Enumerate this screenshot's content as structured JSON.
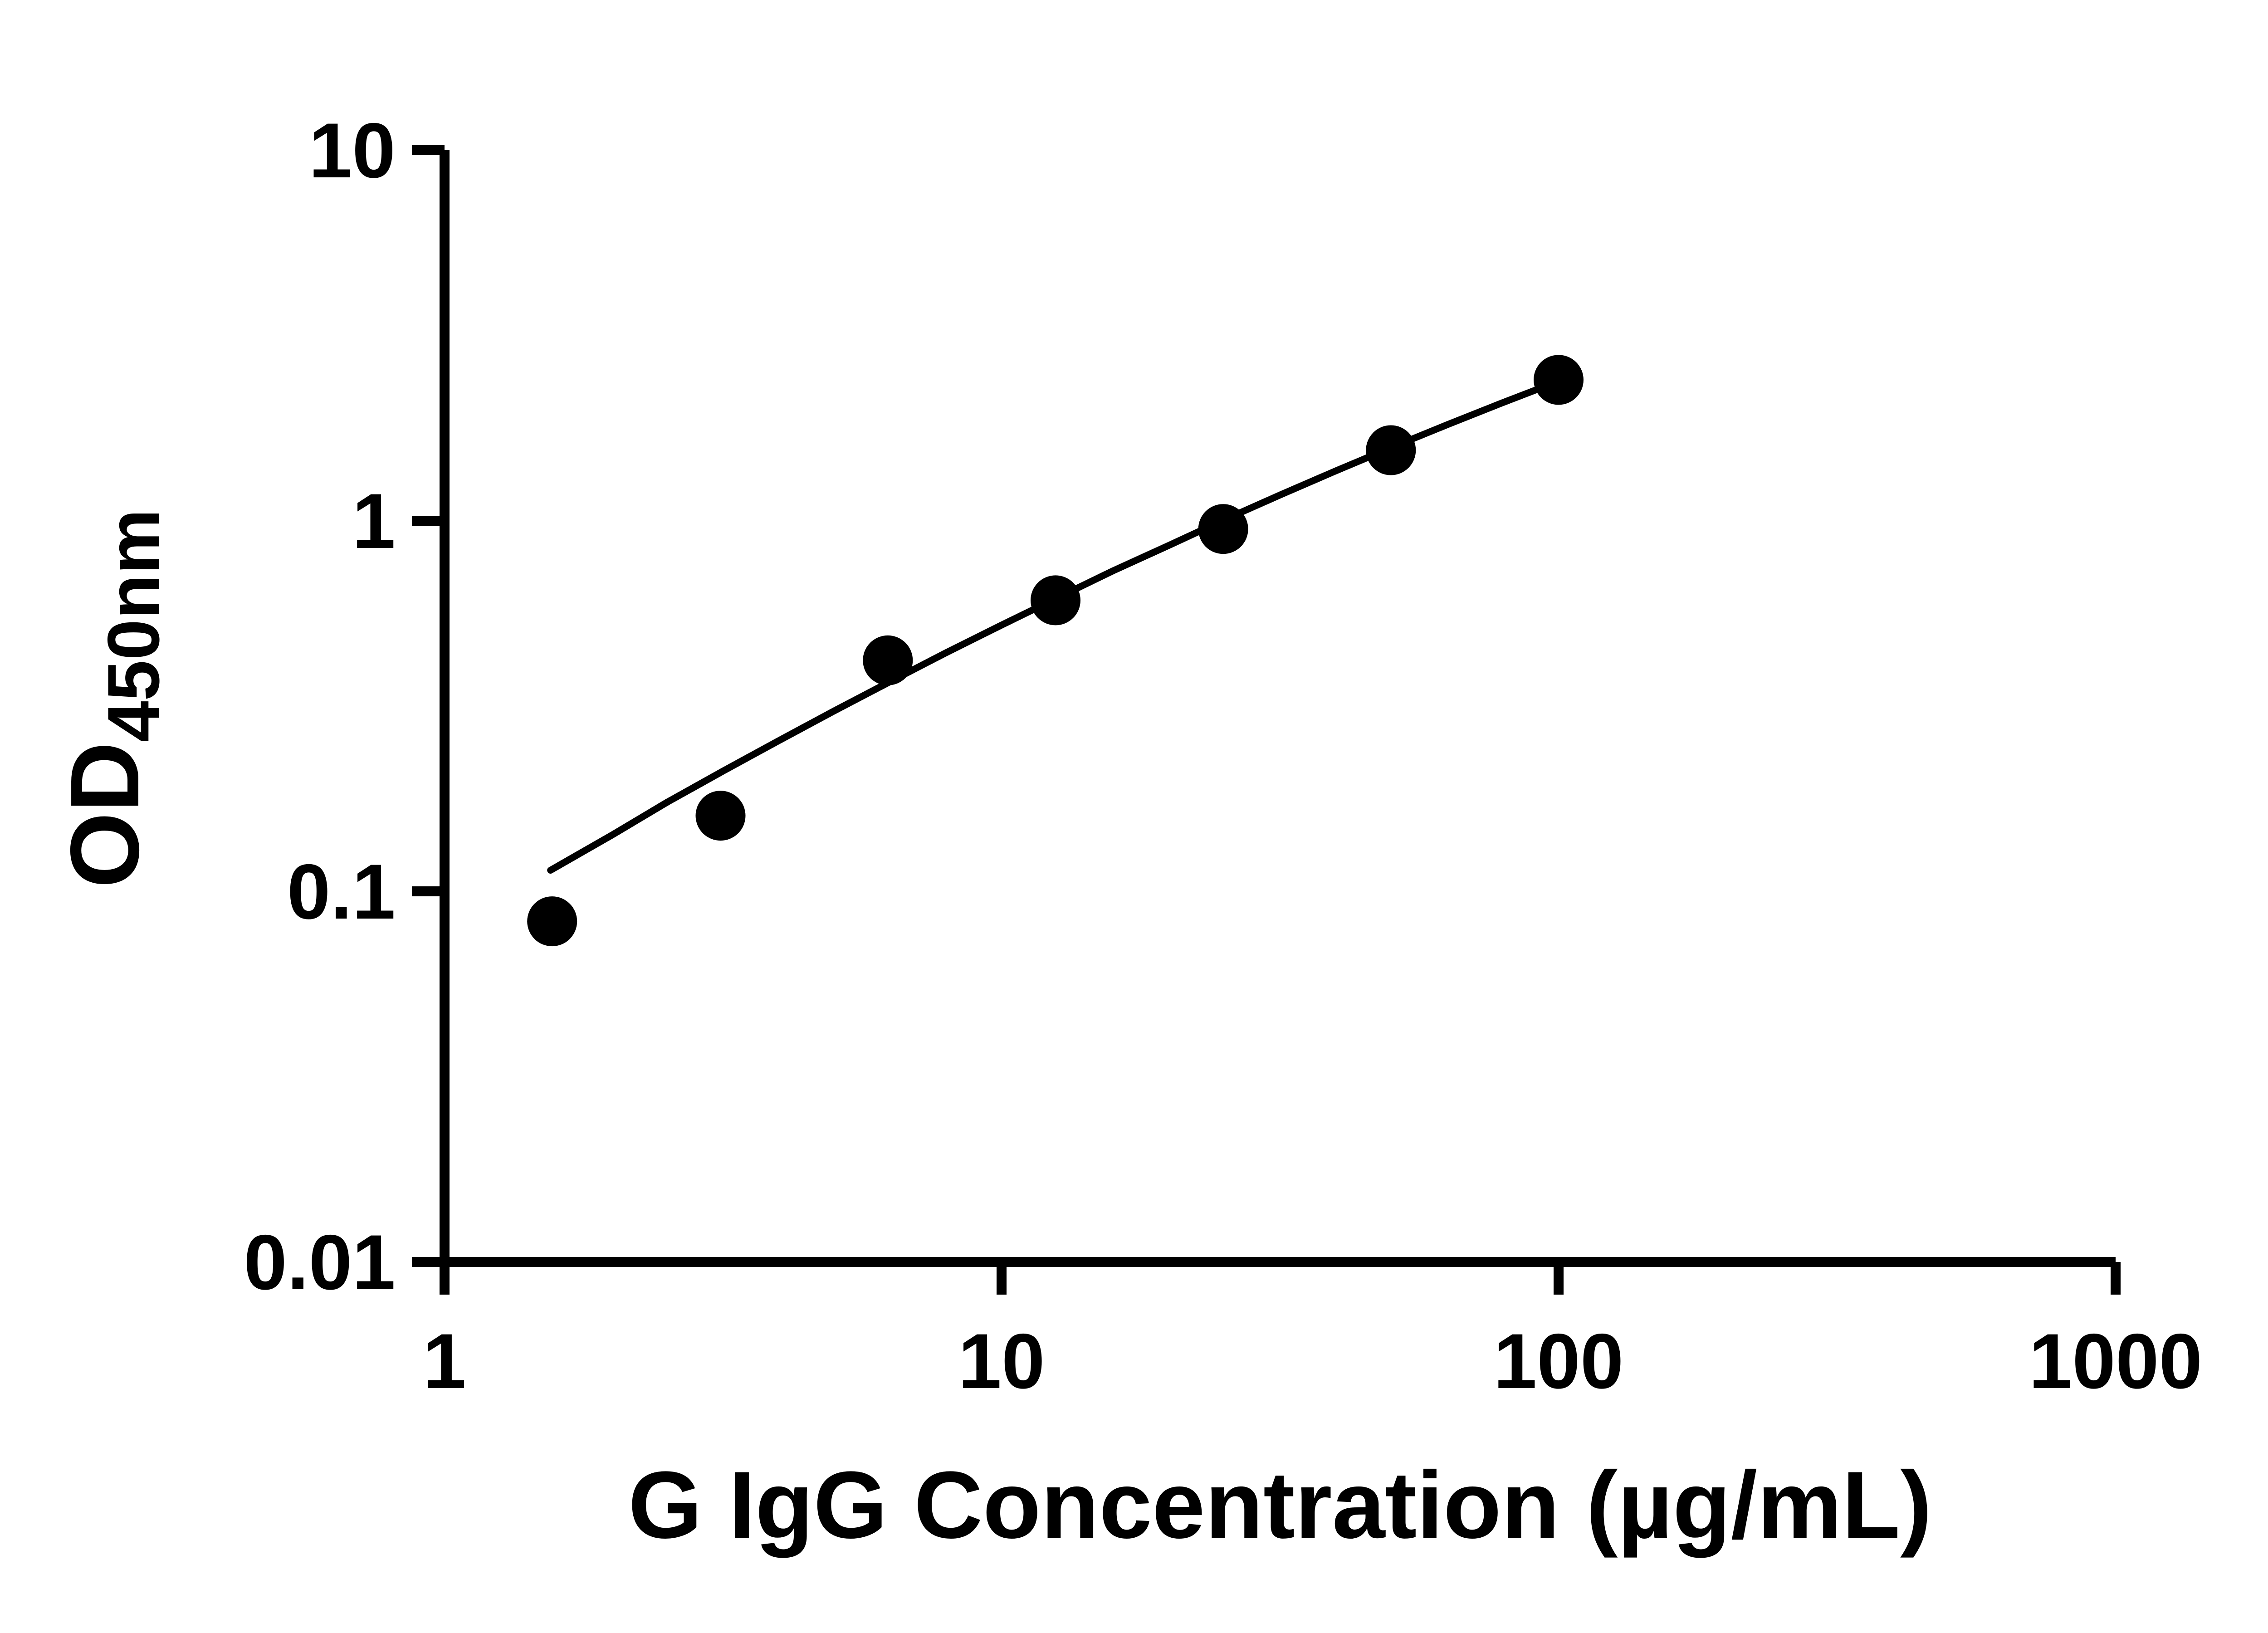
{
  "figure": {
    "background_color": "#ffffff",
    "foreground_color": "#000000"
  },
  "chart_data": {
    "type": "scatter",
    "xlabel": "G IgG Concentration (µg/mL)",
    "ylabel": {
      "main": "OD",
      "sub": "450nm"
    },
    "x_scale": "log10",
    "y_scale": "log10",
    "xlim": [
      1,
      1000
    ],
    "ylim": [
      0.01,
      10
    ],
    "grid": false,
    "legend": "none",
    "x_ticks": [
      {
        "value": 1,
        "label": "1"
      },
      {
        "value": 10,
        "label": "10"
      },
      {
        "value": 100,
        "label": "100"
      },
      {
        "value": 1000,
        "label": "1000"
      }
    ],
    "y_ticks": [
      {
        "value": 0.01,
        "label": "0.01"
      },
      {
        "value": 0.1,
        "label": "0.1"
      },
      {
        "value": 1,
        "label": "1"
      },
      {
        "value": 10,
        "label": "10"
      }
    ],
    "series": [
      {
        "marker": "circle",
        "color": "#000000",
        "points": [
          {
            "x": 1.56,
            "y": 0.083
          },
          {
            "x": 3.13,
            "y": 0.16
          },
          {
            "x": 6.25,
            "y": 0.42
          },
          {
            "x": 12.5,
            "y": 0.61
          },
          {
            "x": 25,
            "y": 0.95
          },
          {
            "x": 50,
            "y": 1.55
          },
          {
            "x": 100,
            "y": 2.4
          }
        ]
      }
    ],
    "trend_line": {
      "color": "#000000",
      "points": [
        {
          "x": 1.55,
          "y": 0.114
        },
        {
          "x": 2.0,
          "y": 0.142
        },
        {
          "x": 2.51,
          "y": 0.174
        },
        {
          "x": 3.16,
          "y": 0.211
        },
        {
          "x": 3.98,
          "y": 0.255
        },
        {
          "x": 5.01,
          "y": 0.307
        },
        {
          "x": 6.31,
          "y": 0.368
        },
        {
          "x": 7.94,
          "y": 0.44
        },
        {
          "x": 10.0,
          "y": 0.523
        },
        {
          "x": 12.5,
          "y": 0.616
        },
        {
          "x": 15.8,
          "y": 0.731
        },
        {
          "x": 20.0,
          "y": 0.859
        },
        {
          "x": 25.1,
          "y": 1.006
        },
        {
          "x": 31.6,
          "y": 1.173
        },
        {
          "x": 39.8,
          "y": 1.363
        },
        {
          "x": 50.1,
          "y": 1.576
        },
        {
          "x": 63.1,
          "y": 1.816
        },
        {
          "x": 79.4,
          "y": 2.083
        },
        {
          "x": 100,
          "y": 2.38
        }
      ]
    }
  }
}
